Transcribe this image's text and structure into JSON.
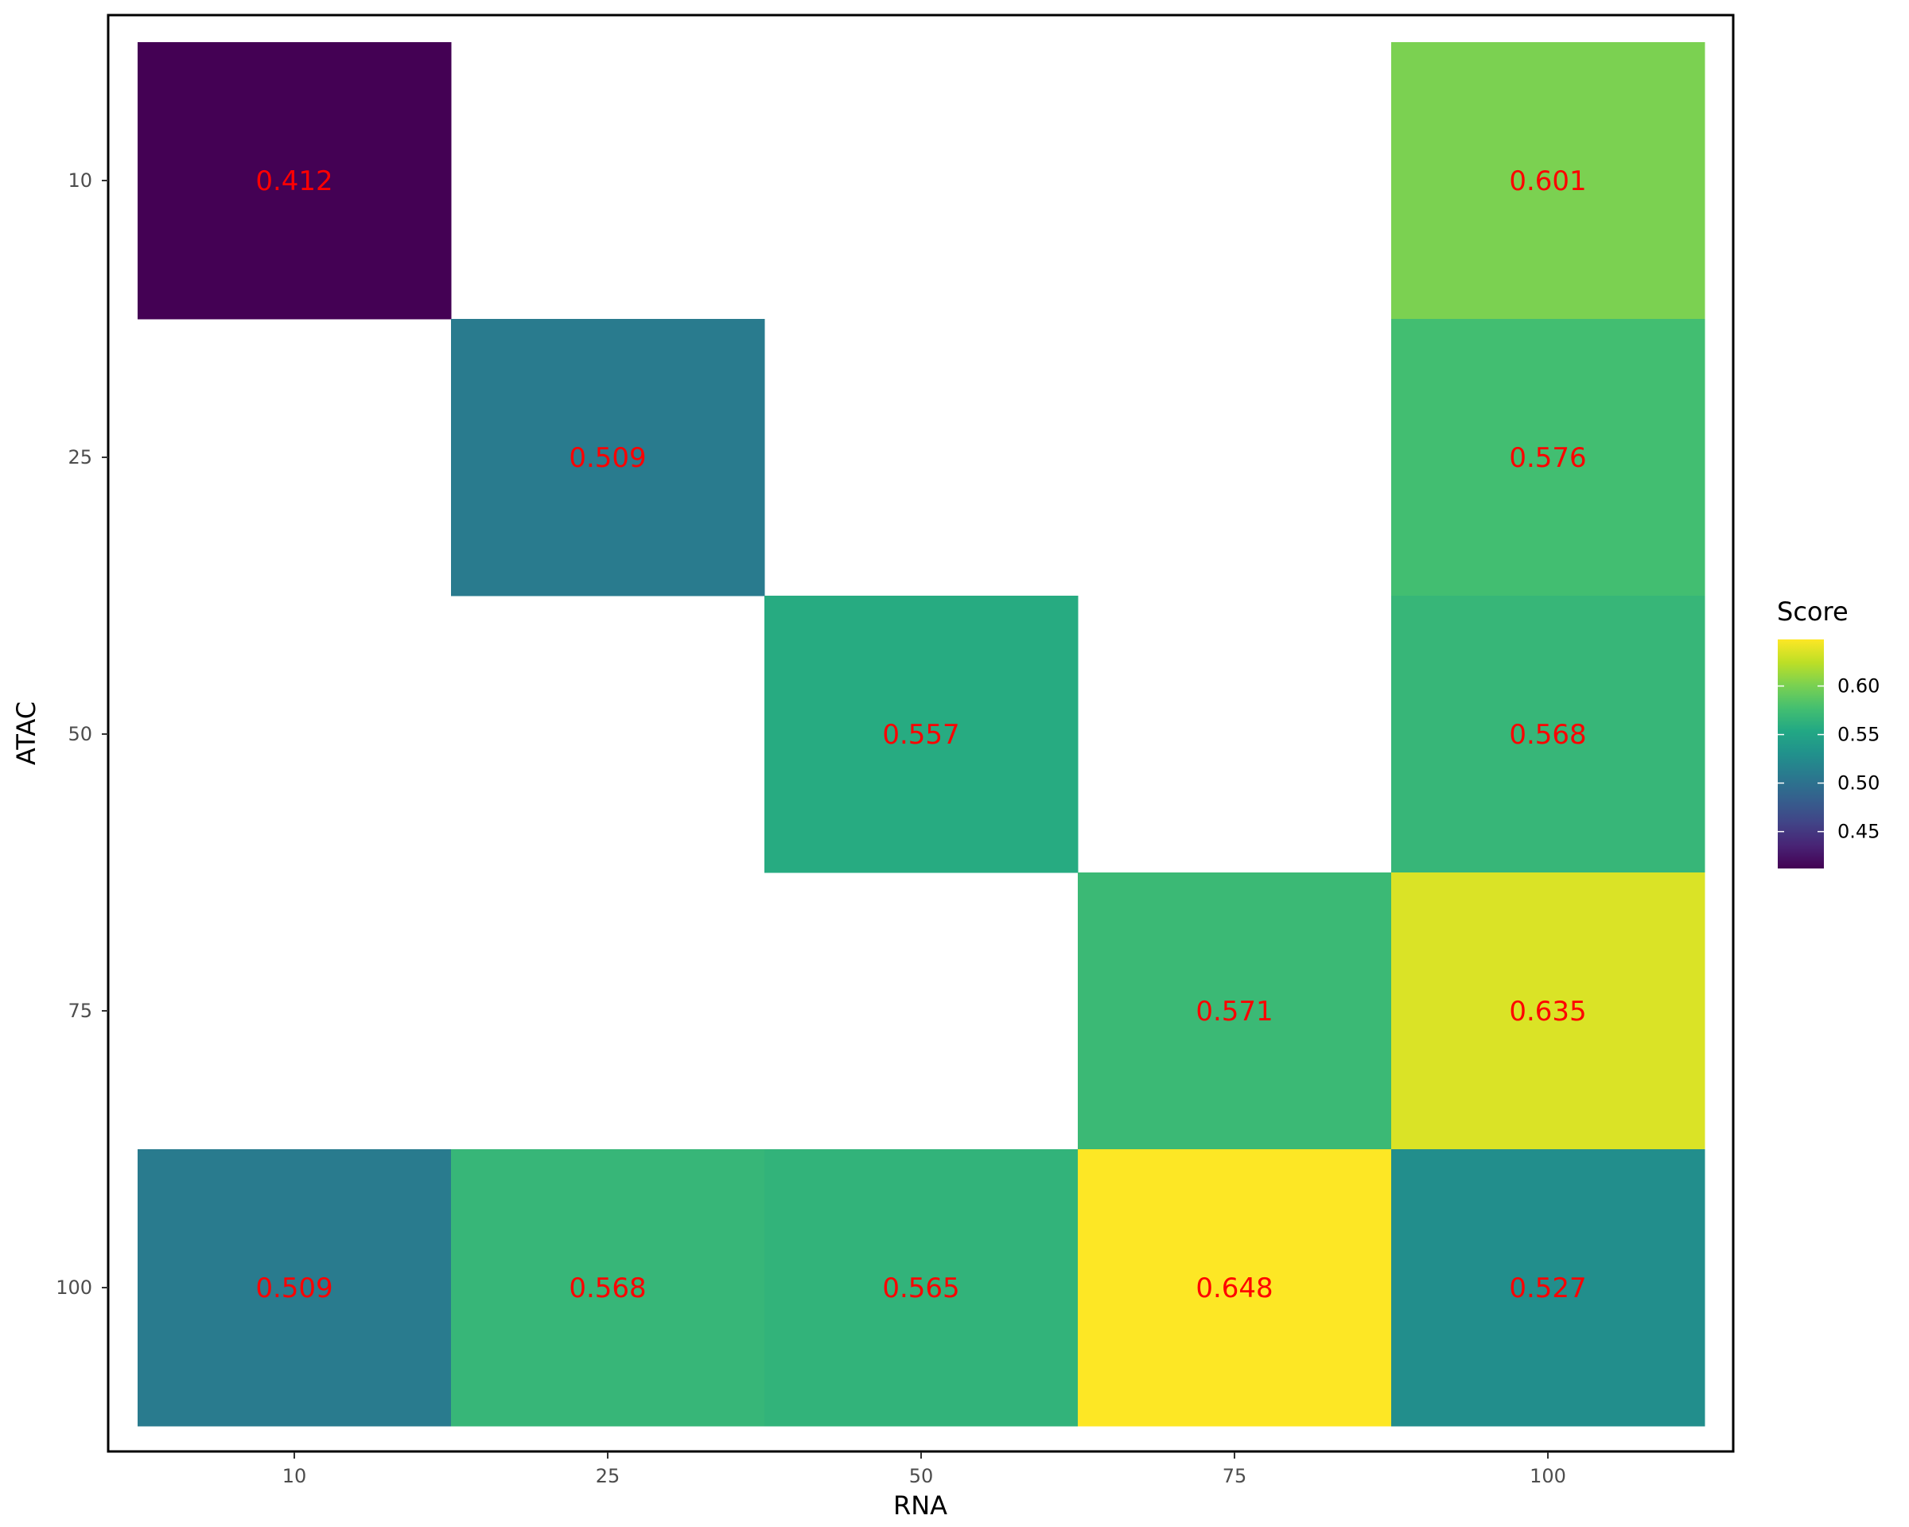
{
  "chart_data": {
    "type": "heatmap",
    "title": "",
    "xlabel": "RNA",
    "ylabel": "ATAC",
    "x_categories": [
      "10",
      "25",
      "50",
      "75",
      "100"
    ],
    "y_categories": [
      "10",
      "25",
      "50",
      "75",
      "100"
    ],
    "cells": [
      {
        "x": "10",
        "y": "10",
        "value": 0.412
      },
      {
        "x": "100",
        "y": "10",
        "value": 0.601
      },
      {
        "x": "25",
        "y": "25",
        "value": 0.509
      },
      {
        "x": "100",
        "y": "25",
        "value": 0.576
      },
      {
        "x": "50",
        "y": "50",
        "value": 0.557
      },
      {
        "x": "100",
        "y": "50",
        "value": 0.568
      },
      {
        "x": "75",
        "y": "75",
        "value": 0.571
      },
      {
        "x": "100",
        "y": "75",
        "value": 0.635
      },
      {
        "x": "10",
        "y": "100",
        "value": 0.509
      },
      {
        "x": "25",
        "y": "100",
        "value": 0.568
      },
      {
        "x": "50",
        "y": "100",
        "value": 0.565
      },
      {
        "x": "75",
        "y": "100",
        "value": 0.648
      },
      {
        "x": "100",
        "y": "100",
        "value": 0.527
      }
    ],
    "value_range": [
      0.412,
      0.648
    ],
    "colormap": "viridis",
    "label_color": "#ff0000",
    "legend": {
      "title": "Score",
      "position": "right",
      "ticks": [
        0.45,
        0.5,
        0.55,
        0.6
      ],
      "tick_labels": [
        "0.45",
        "0.50",
        "0.55",
        "0.60"
      ]
    },
    "grid": false,
    "panel_border": true
  }
}
